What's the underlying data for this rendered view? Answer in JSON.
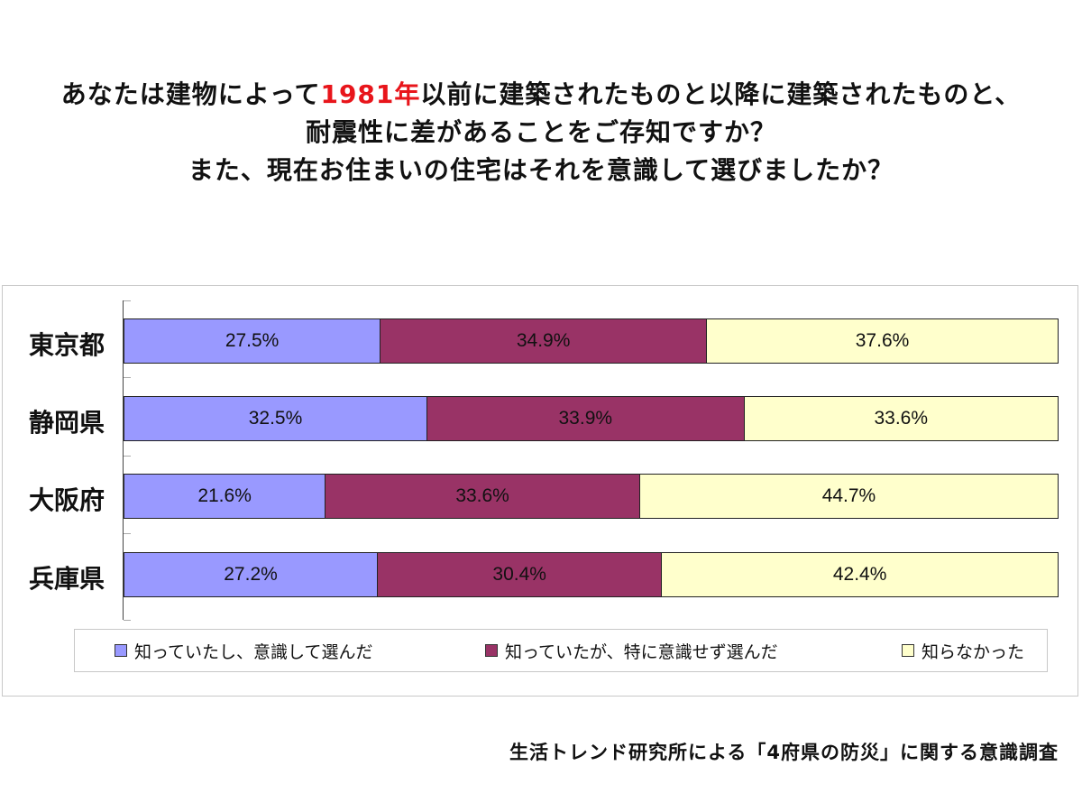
{
  "title": {
    "line1_pre": "あなたは建物によって",
    "line1_highlight": "1981年",
    "line1_post": "以前に建築されたものと以降に建築されたものと、",
    "line2": "耐震性に差があることをご存知ですか？",
    "line3": "また、現在お住まいの住宅はそれを意識して選びましたか？",
    "highlight_color": "#e8151b"
  },
  "chart_data": {
    "type": "bar",
    "orientation": "horizontal",
    "stacked": true,
    "percent_stacked": true,
    "categories": [
      "東京都",
      "静岡県",
      "大阪府",
      "兵庫県"
    ],
    "series": [
      {
        "name": "知っていたし、意識して選んだ",
        "values": [
          27.5,
          32.5,
          21.6,
          27.2
        ],
        "labels": [
          "27.5%",
          "32.5%",
          "21.6%",
          "27.2%"
        ],
        "color": "#9999ff"
      },
      {
        "name": "知っていたが、特に意識せず選んだ",
        "values": [
          34.9,
          33.9,
          33.6,
          30.4
        ],
        "labels": [
          "34.9%",
          "33.9%",
          "33.6%",
          "30.4%"
        ],
        "color": "#993366"
      },
      {
        "name": "知らなかった",
        "values": [
          37.6,
          33.6,
          44.7,
          42.4
        ],
        "labels": [
          "37.6%",
          "33.6%",
          "44.7%",
          "42.4%"
        ],
        "color": "#ffffcc"
      }
    ],
    "xlim": [
      0,
      100
    ],
    "legend_position": "bottom"
  },
  "source": "生活トレンド研究所による「4府県の防災」に関する意識調査"
}
